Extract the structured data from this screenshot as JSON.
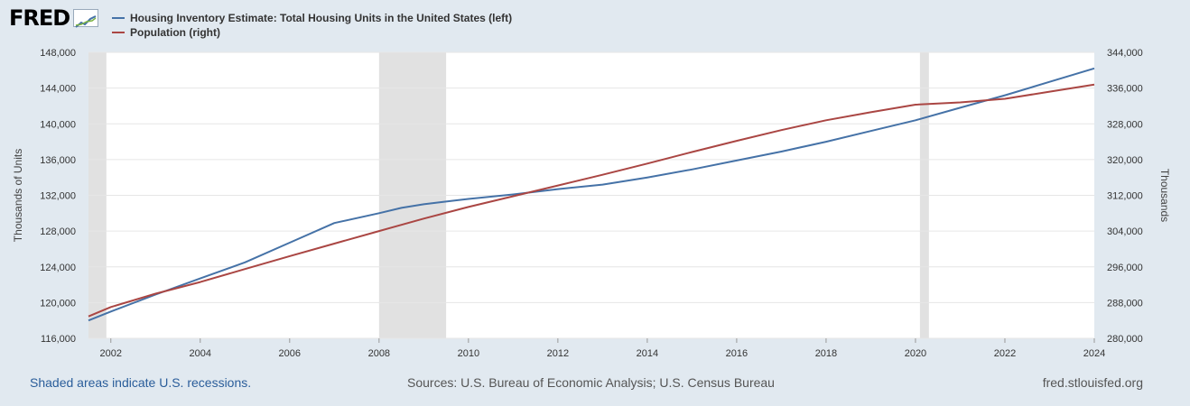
{
  "logo": {
    "text": "FRED",
    "icon": "fred-graph-icon"
  },
  "legend": [
    {
      "label": "Housing Inventory Estimate: Total Housing Units in the United States (left)",
      "color": "#4572a7"
    },
    {
      "label": "Population (right)",
      "color": "#aa4643"
    }
  ],
  "footer": {
    "recessions_note": "Shaded areas indicate U.S. recessions.",
    "sources": "Sources: U.S. Bureau of Economic Analysis; U.S. Census Bureau",
    "site": "fred.stlouisfed.org"
  },
  "chart_data": {
    "type": "line",
    "ylabel_left": "Thousands of Units",
    "ylabel_right": "Thousands",
    "xlim": [
      2001.5,
      2024.0
    ],
    "ylim_left": [
      116000,
      148000
    ],
    "ylim_right": [
      280000,
      344000
    ],
    "x_ticks": [
      2002,
      2004,
      2006,
      2008,
      2010,
      2012,
      2014,
      2016,
      2018,
      2020,
      2022,
      2024
    ],
    "y_ticks_left": [
      116000,
      120000,
      124000,
      128000,
      132000,
      136000,
      140000,
      144000,
      148000
    ],
    "y_ticks_right": [
      280000,
      288000,
      296000,
      304000,
      312000,
      320000,
      328000,
      336000,
      344000
    ],
    "grid": true,
    "recessions": [
      [
        2001.5,
        2001.9
      ],
      [
        2008.0,
        2009.5
      ],
      [
        2020.1,
        2020.3
      ]
    ],
    "series": [
      {
        "name": "Housing Inventory Estimate: Total Housing Units in the United States (left)",
        "axis": "left",
        "color": "#4572a7",
        "x": [
          2001.5,
          2002,
          2003,
          2004,
          2005,
          2006,
          2007,
          2008,
          2008.5,
          2009,
          2009.5,
          2010,
          2011,
          2012,
          2013,
          2014,
          2015,
          2016,
          2017,
          2018,
          2019,
          2020,
          2021,
          2022,
          2023,
          2024
        ],
        "values": [
          118000,
          119000,
          120900,
          122700,
          124500,
          126700,
          128900,
          130000,
          130600,
          131000,
          131300,
          131600,
          132100,
          132700,
          133200,
          134000,
          134900,
          135900,
          136900,
          138000,
          139200,
          140400,
          141800,
          143200,
          144700,
          146200
        ]
      },
      {
        "name": "Population (right)",
        "axis": "right",
        "color": "#aa4643",
        "x": [
          2001.5,
          2002,
          2003,
          2004,
          2005,
          2006,
          2007,
          2008,
          2009,
          2010,
          2011,
          2012,
          2013,
          2014,
          2015,
          2016,
          2017,
          2018,
          2019,
          2020,
          2021,
          2022,
          2023,
          2024
        ],
        "values": [
          284900,
          287000,
          290000,
          292600,
          295500,
          298400,
          301200,
          304000,
          306800,
          309400,
          311800,
          314200,
          316600,
          319100,
          321700,
          324200,
          326600,
          328800,
          330600,
          332300,
          332800,
          333600,
          335200,
          336800
        ]
      }
    ]
  }
}
